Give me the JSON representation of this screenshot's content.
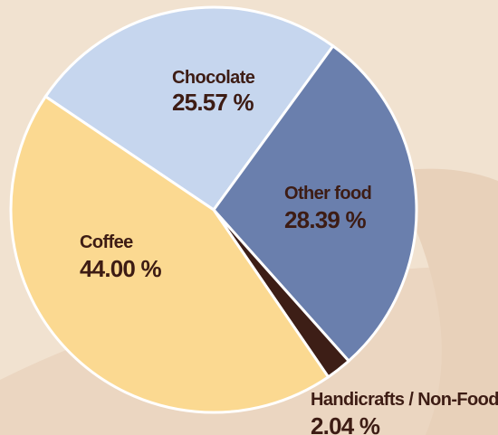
{
  "chart_data": {
    "type": "pie",
    "title": "",
    "slices": [
      {
        "label": "Chocolate",
        "value": 25.57,
        "value_label": "25.57 %",
        "color": "#c6d6ee"
      },
      {
        "label": "Other food",
        "value": 28.39,
        "value_label": "28.39 %",
        "color": "#6a7fad"
      },
      {
        "label": "Handicrafts / Non-Food",
        "value": 2.04,
        "value_label": "2.04 %",
        "color": "#3d1e16"
      },
      {
        "label": "Coffee",
        "value": 44.0,
        "value_label": "44.00 %",
        "color": "#fbd991"
      }
    ],
    "legend": "none",
    "background_color": "#f1e2d0"
  }
}
